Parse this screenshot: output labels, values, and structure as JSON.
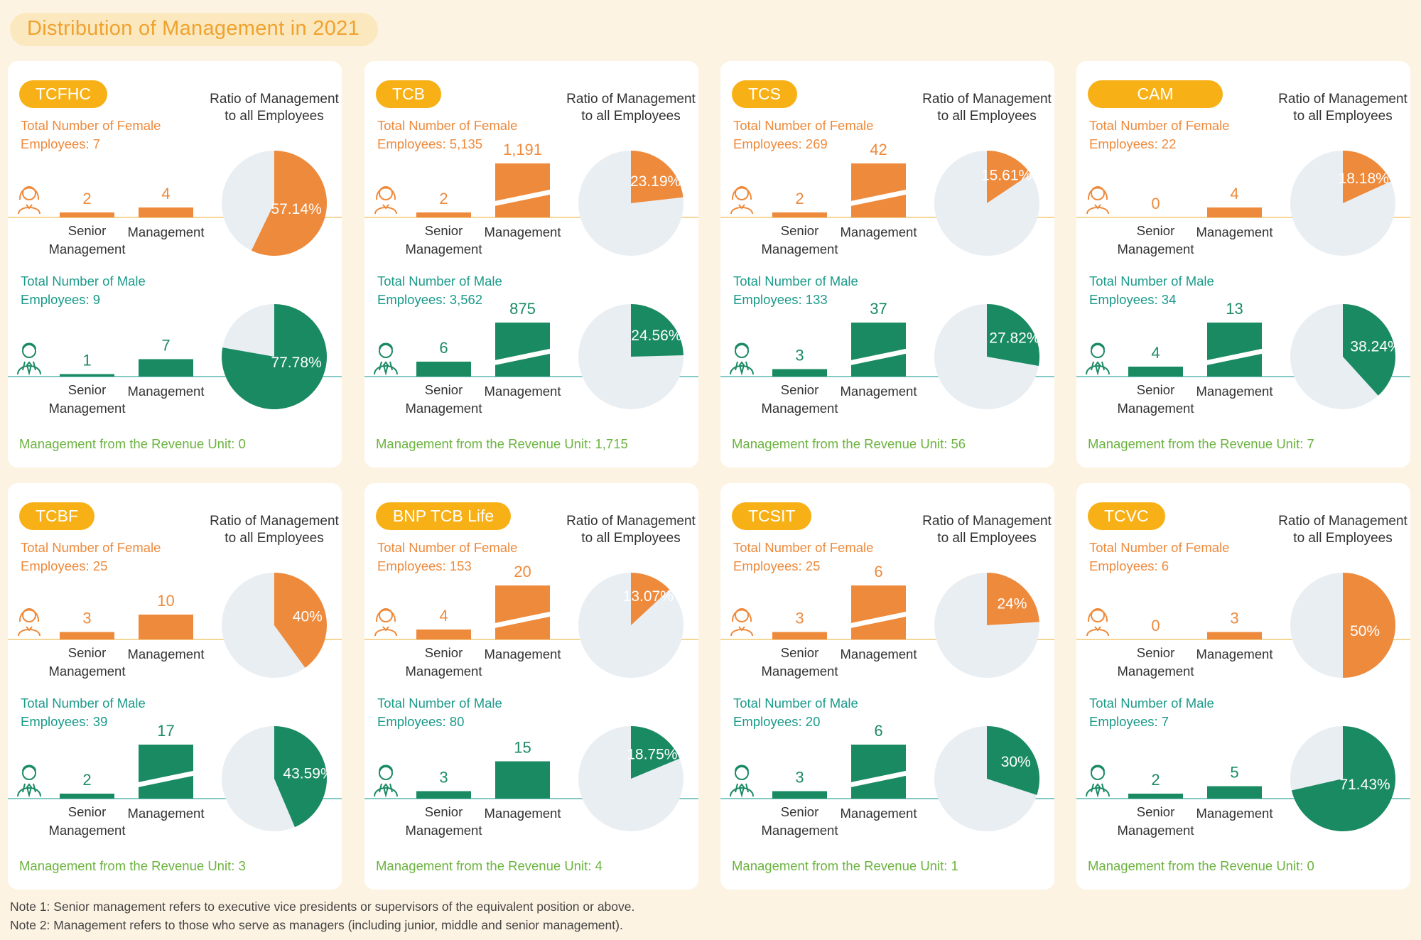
{
  "title": "Distribution of Management in 2021",
  "labels": {
    "ratio": "Ratio of Management to all Employees",
    "female_prefix": "Total Number of Female Employees: ",
    "male_prefix": "Total Number of Male Employees: ",
    "revenue_prefix": "Management from the Revenue Unit: ",
    "senior": "Senior Management",
    "management": "Management"
  },
  "colors": {
    "female": "#ee8a3c",
    "male": "#1a8a63",
    "pie_rest": "#e9eef3",
    "pill": "#f7b116",
    "revenue_text": "#6cb33f",
    "female_text": "#ee8a3c",
    "male_text": "#1a9a8a",
    "female_axis": "#f3c874",
    "male_axis": "#5cb8b0"
  },
  "icons": {
    "female": "female-person-icon",
    "male": "male-person-icon"
  },
  "chart_data": [
    {
      "type": "bar",
      "company": "TCFHC",
      "female": {
        "total": "7",
        "senior": "2",
        "management": "4",
        "ratio_label": "57.14%",
        "ratio": 57.14,
        "broken": false
      },
      "male": {
        "total": "9",
        "senior": "1",
        "management": "7",
        "ratio_label": "77.78%",
        "ratio": 77.78,
        "broken": false
      },
      "revenue_unit": "0"
    },
    {
      "type": "bar",
      "company": "TCB",
      "female": {
        "total": "5,135",
        "senior": "2",
        "management": "1,191",
        "ratio_label": "23.19%",
        "ratio": 23.19,
        "broken": true
      },
      "male": {
        "total": "3,562",
        "senior": "6",
        "management": "875",
        "ratio_label": "24.56%",
        "ratio": 24.56,
        "broken": true
      },
      "revenue_unit": "1,715"
    },
    {
      "type": "bar",
      "company": "TCS",
      "female": {
        "total": "269",
        "senior": "2",
        "management": "42",
        "ratio_label": "15.61%",
        "ratio": 15.61,
        "broken": true
      },
      "male": {
        "total": "133",
        "senior": "3",
        "management": "37",
        "ratio_label": "27.82%",
        "ratio": 27.82,
        "broken": true
      },
      "revenue_unit": "56"
    },
    {
      "type": "bar",
      "company": "CAM",
      "female": {
        "total": "22",
        "senior": "0",
        "management": "4",
        "ratio_label": "18.18%",
        "ratio": 18.18,
        "broken": false
      },
      "male": {
        "total": "34",
        "senior": "4",
        "management": "13",
        "ratio_label": "38.24%",
        "ratio": 38.24,
        "broken": true
      },
      "revenue_unit": "7"
    },
    {
      "type": "bar",
      "company": "TCBF",
      "female": {
        "total": "25",
        "senior": "3",
        "management": "10",
        "ratio_label": "40%",
        "ratio": 40,
        "broken": false
      },
      "male": {
        "total": "39",
        "senior": "2",
        "management": "17",
        "ratio_label": "43.59%",
        "ratio": 43.59,
        "broken": true
      },
      "revenue_unit": "3"
    },
    {
      "type": "bar",
      "company": "BNP TCB Life",
      "female": {
        "total": "153",
        "senior": "4",
        "management": "20",
        "ratio_label": "13.07%",
        "ratio": 13.07,
        "broken": true
      },
      "male": {
        "total": "80",
        "senior": "3",
        "management": "15",
        "ratio_label": "18.75%",
        "ratio": 18.75,
        "broken": false
      },
      "revenue_unit": "4"
    },
    {
      "type": "bar",
      "company": "TCSIT",
      "female": {
        "total": "25",
        "senior": "3",
        "management": "6",
        "ratio_label": "24%",
        "ratio": 24,
        "broken": true
      },
      "male": {
        "total": "20",
        "senior": "3",
        "management": "6",
        "ratio_label": "30%",
        "ratio": 30,
        "broken": true
      },
      "revenue_unit": "1"
    },
    {
      "type": "bar",
      "company": "TCVC",
      "female": {
        "total": "6",
        "senior": "0",
        "management": "3",
        "ratio_label": "50%",
        "ratio": 50,
        "broken": false
      },
      "male": {
        "total": "7",
        "senior": "2",
        "management": "5",
        "ratio_label": "71.43%",
        "ratio": 71.43,
        "broken": false
      },
      "revenue_unit": "0"
    }
  ],
  "notes": [
    "Note 1: Senior management refers to executive vice presidents or supervisors of the equivalent position or above.",
    "Note 2: Management refers to those who serve as managers (including junior, middle and senior management)."
  ]
}
